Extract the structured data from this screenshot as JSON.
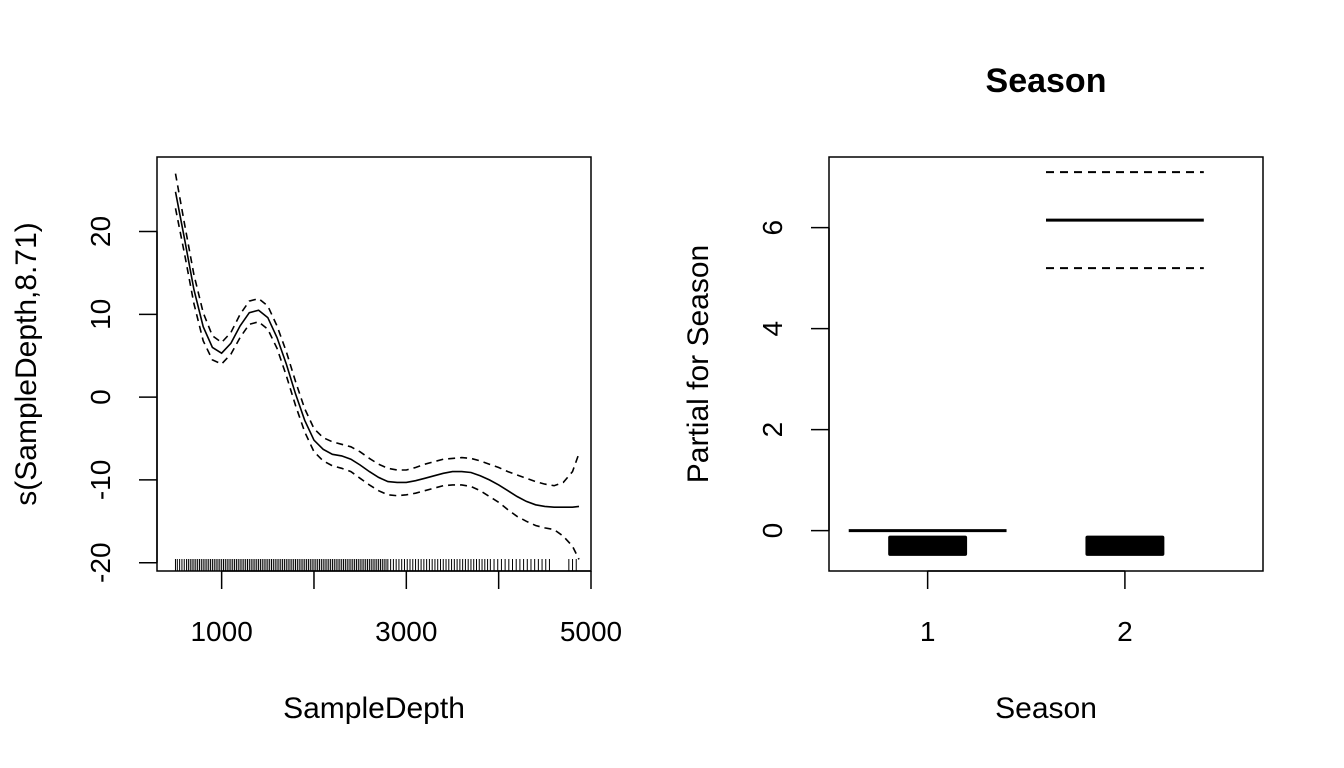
{
  "chart_data": [
    {
      "type": "line",
      "title": "",
      "xlabel": "SampleDepth",
      "ylabel": "s(SampleDepth,8.71)",
      "xlim": [
        300,
        5000
      ],
      "ylim": [
        -21,
        29
      ],
      "xticks": [
        1000,
        2000,
        3000,
        4000,
        5000
      ],
      "xtick_labels": [
        "1000",
        "",
        "3000",
        "",
        "5000"
      ],
      "yticks": [
        -20,
        -10,
        0,
        10,
        20
      ],
      "ytick_labels": [
        "-20",
        "-10",
        "0",
        "10",
        "20"
      ],
      "grid": false,
      "x": [
        500,
        600,
        700,
        800,
        900,
        1000,
        1100,
        1200,
        1300,
        1400,
        1500,
        1600,
        1700,
        1800,
        1900,
        2000,
        2100,
        2200,
        2300,
        2400,
        2500,
        2600,
        2700,
        2800,
        2900,
        3000,
        3100,
        3200,
        3300,
        3400,
        3500,
        3600,
        3700,
        3800,
        3900,
        4000,
        4100,
        4200,
        4300,
        4400,
        4500,
        4600,
        4700,
        4800,
        4870
      ],
      "series": [
        {
          "role": "fit",
          "dash": "solid",
          "values": [
            24.8,
            19,
            13,
            8.5,
            6,
            5.3,
            6.5,
            8.6,
            10.2,
            10.5,
            9.6,
            7.2,
            4,
            0.4,
            -2.8,
            -5.2,
            -6.3,
            -6.9,
            -7.1,
            -7.5,
            -8.2,
            -9,
            -9.7,
            -10.2,
            -10.3,
            -10.3,
            -10.1,
            -9.8,
            -9.5,
            -9.2,
            -9,
            -9,
            -9.1,
            -9.5,
            -10,
            -10.6,
            -11.3,
            -12,
            -12.6,
            -13,
            -13.2,
            -13.3,
            -13.3,
            -13.3,
            -13.2
          ]
        },
        {
          "role": "upper",
          "dash": "dashed",
          "values": [
            27,
            20.8,
            14.8,
            10.2,
            7.4,
            6.6,
            7.8,
            10,
            11.6,
            11.9,
            11,
            8.6,
            5.5,
            1.9,
            -1.4,
            -3.8,
            -4.9,
            -5.4,
            -5.7,
            -6,
            -6.6,
            -7.4,
            -8.1,
            -8.6,
            -8.8,
            -8.8,
            -8.5,
            -8.1,
            -7.8,
            -7.5,
            -7.4,
            -7.3,
            -7.4,
            -7.7,
            -8.1,
            -8.5,
            -9,
            -9.4,
            -9.8,
            -10.2,
            -10.5,
            -10.7,
            -10.3,
            -9,
            -6.8
          ]
        },
        {
          "role": "lower",
          "dash": "dashed",
          "values": [
            22.8,
            17.2,
            11.3,
            6.8,
            4.5,
            4,
            5.2,
            7.2,
            8.8,
            9.1,
            8.2,
            5.9,
            2.6,
            -1,
            -4.2,
            -6.6,
            -7.7,
            -8.3,
            -8.6,
            -9,
            -9.8,
            -10.6,
            -11.3,
            -11.8,
            -11.9,
            -11.8,
            -11.6,
            -11.3,
            -11,
            -10.7,
            -10.6,
            -10.6,
            -10.8,
            -11.3,
            -12,
            -12.7,
            -13.6,
            -14.4,
            -15,
            -15.5,
            -15.8,
            -16,
            -16.8,
            -18,
            -19.6
          ]
        }
      ],
      "rug": [
        500,
        520,
        545,
        570,
        595,
        620,
        640,
        660,
        680,
        700,
        720,
        740,
        760,
        780,
        800,
        820,
        840,
        860,
        880,
        900,
        920,
        940,
        960,
        980,
        1000,
        1020,
        1040,
        1060,
        1080,
        1100,
        1120,
        1140,
        1160,
        1180,
        1200,
        1220,
        1240,
        1260,
        1280,
        1300,
        1320,
        1340,
        1360,
        1380,
        1400,
        1420,
        1440,
        1460,
        1480,
        1500,
        1520,
        1540,
        1560,
        1580,
        1600,
        1620,
        1640,
        1660,
        1680,
        1700,
        1720,
        1740,
        1760,
        1780,
        1800,
        1820,
        1840,
        1860,
        1880,
        1900,
        1920,
        1940,
        1960,
        1980,
        2000,
        2020,
        2040,
        2060,
        2080,
        2100,
        2120,
        2140,
        2160,
        2180,
        2200,
        2220,
        2240,
        2260,
        2280,
        2300,
        2320,
        2340,
        2360,
        2380,
        2400,
        2420,
        2440,
        2460,
        2480,
        2500,
        2520,
        2540,
        2560,
        2580,
        2600,
        2620,
        2640,
        2660,
        2680,
        2700,
        2720,
        2740,
        2760,
        2780,
        2800,
        2830,
        2860,
        2890,
        2920,
        2950,
        2980,
        3010,
        3040,
        3070,
        3100,
        3130,
        3160,
        3190,
        3220,
        3250,
        3280,
        3310,
        3340,
        3370,
        3400,
        3430,
        3460,
        3490,
        3520,
        3550,
        3580,
        3610,
        3640,
        3670,
        3700,
        3730,
        3760,
        3790,
        3820,
        3850,
        3880,
        3910,
        3950,
        3990,
        4030,
        4070,
        4110,
        4150,
        4190,
        4230,
        4270,
        4310,
        4350,
        4390,
        4430,
        4470,
        4510,
        4550,
        4760,
        4800,
        4840
      ]
    },
    {
      "type": "bar",
      "title": "Season",
      "xlabel": "Season",
      "ylabel": "Partial for Season",
      "categories": [
        "1",
        "2"
      ],
      "xlim": [
        0.5,
        2.7
      ],
      "ylim": [
        -0.8,
        7.4
      ],
      "yticks": [
        0,
        2,
        4,
        6
      ],
      "ytick_labels": [
        "0",
        "2",
        "4",
        "6"
      ],
      "grid": false,
      "series": [
        {
          "role": "fit",
          "dash": "solid",
          "values": [
            0,
            6.15
          ]
        },
        {
          "role": "upper",
          "dash": "dashed",
          "values": [
            null,
            7.1
          ]
        },
        {
          "role": "lower",
          "dash": "dashed",
          "values": [
            null,
            5.2
          ]
        }
      ],
      "segment_half_width": 0.4,
      "rug_block": {
        "level": -0.3,
        "half_height": 0.2,
        "half_width": 0.2
      }
    }
  ]
}
